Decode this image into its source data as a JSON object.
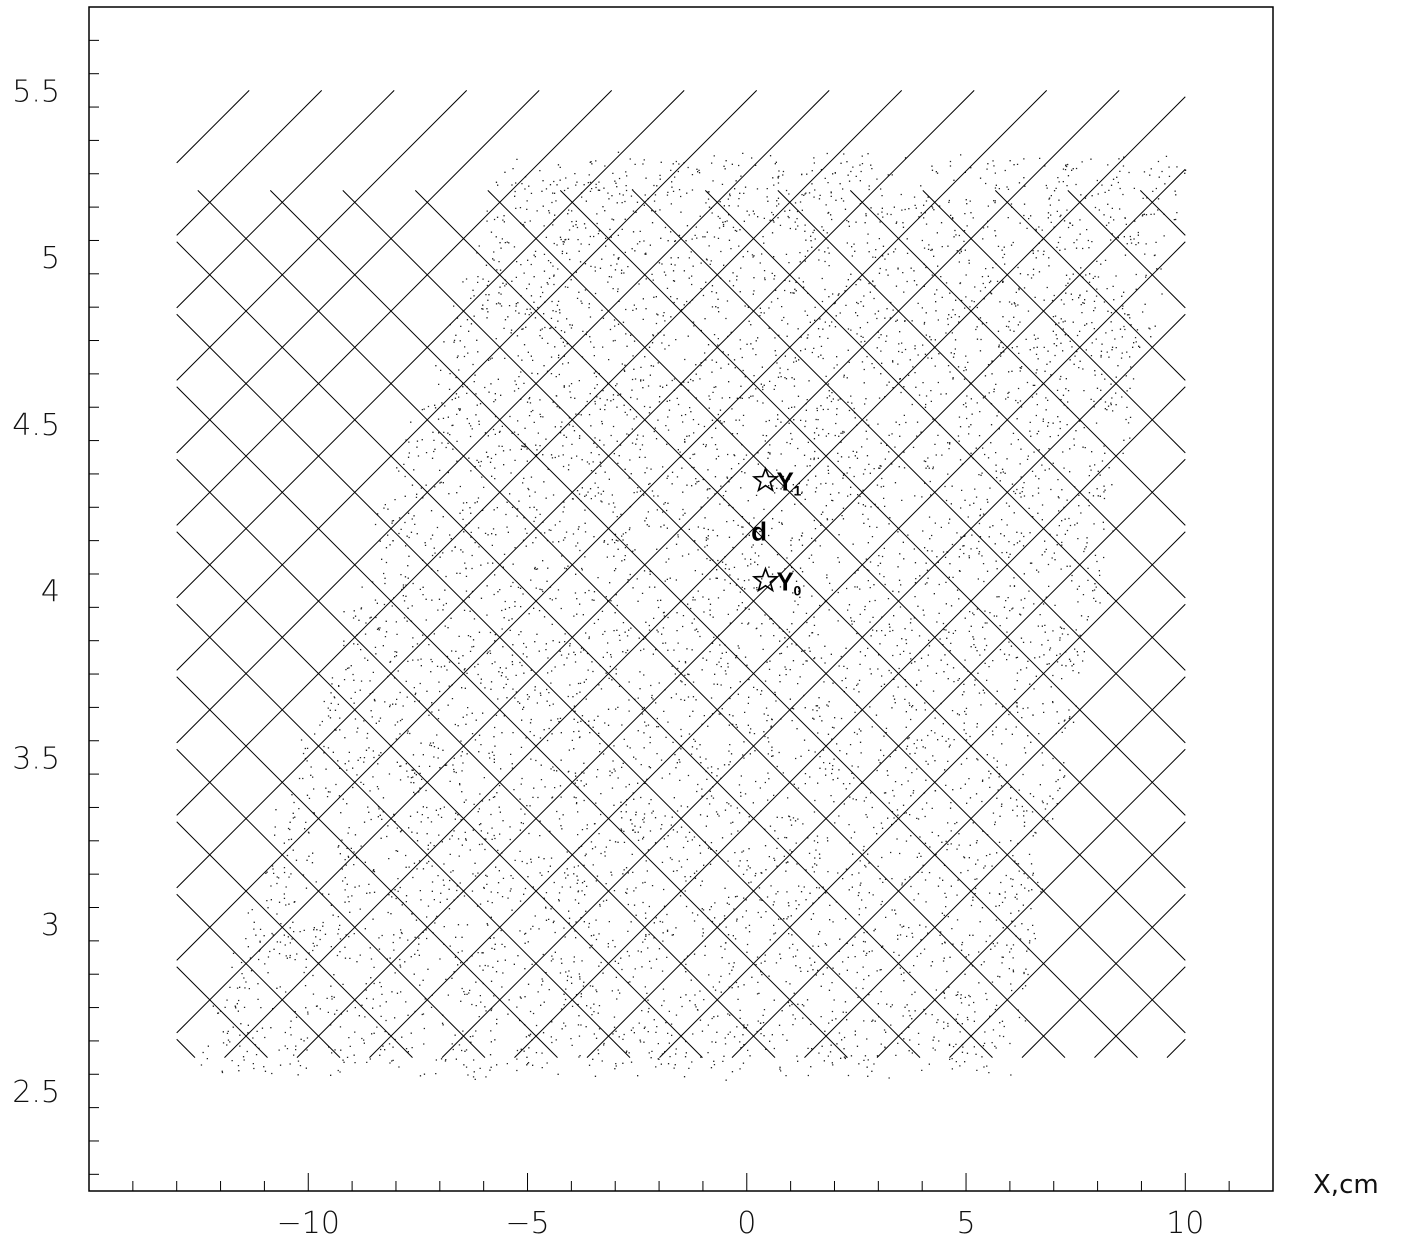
{
  "chart_data": {
    "type": "scatter",
    "title": "",
    "xlabel": "X,cm",
    "ylabel": "",
    "xlim": [
      -15,
      12
    ],
    "ylim": [
      2.2,
      5.75
    ],
    "x_ticks": [
      -10,
      -5,
      0,
      5,
      10
    ],
    "x_tick_labels": [
      "−10",
      "−5",
      "0",
      "5",
      "10"
    ],
    "y_ticks": [
      2.5,
      3,
      3.5,
      4,
      4.5,
      5,
      5.5
    ],
    "y_tick_labels": [
      "2.5",
      "3",
      "3.5",
      "4",
      "4.5",
      "5",
      "5.5"
    ],
    "grid": false,
    "legend": "none",
    "scatter_region": {
      "description": "dense uniform point cloud forming a tilted quadrilateral",
      "corners": [
        [
          -12.6,
          2.55
        ],
        [
          6.0,
          2.55
        ],
        [
          9.9,
          5.3
        ],
        [
          -5.5,
          5.3
        ]
      ],
      "point_count_approx": 9000
    },
    "line_grid": {
      "description": "crossing diagonal line segments at +45 and -45 degrees",
      "x_range": [
        -13,
        10
      ],
      "y_range": [
        2.6,
        5.5
      ]
    },
    "annotations": [
      {
        "marker": "star",
        "x": 0.2,
        "y": 4.33,
        "label": "Y",
        "subscript": "1"
      },
      {
        "marker": "star",
        "x": 0.2,
        "y": 4.03,
        "label": "Y",
        "subscript": "0"
      },
      {
        "marker": "none",
        "x": 0.1,
        "y": 4.18,
        "label": "d"
      }
    ]
  }
}
